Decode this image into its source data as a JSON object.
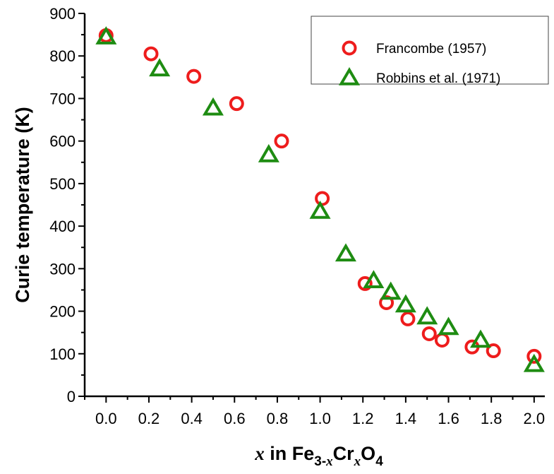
{
  "chart_data": {
    "type": "scatter",
    "xlabel": {
      "var": "x",
      "text_in": " in Fe",
      "sub1": "3-",
      "sub1_var": "x",
      "mid": "Cr",
      "sub2_var": "x",
      "mid2": "O",
      "sub3": "4"
    },
    "ylabel": "Curie temperature (K)",
    "xlim": [
      -0.1,
      2.05
    ],
    "ylim": [
      0,
      900
    ],
    "x_ticks": [
      "0.0",
      "0.2",
      "0.4",
      "0.6",
      "0.8",
      "1.0",
      "1.2",
      "1.4",
      "1.6",
      "1.8",
      "2.0"
    ],
    "y_ticks": [
      "0",
      "100",
      "200",
      "300",
      "400",
      "500",
      "600",
      "700",
      "800",
      "900"
    ],
    "grid": false,
    "legend_position": "top-right",
    "series": [
      {
        "name": "Francombe (1957)",
        "marker": "circle-open",
        "color": "#ee1c1c",
        "points": [
          {
            "x": 0.0,
            "y": 848
          },
          {
            "x": 0.21,
            "y": 805
          },
          {
            "x": 0.41,
            "y": 752
          },
          {
            "x": 0.61,
            "y": 688
          },
          {
            "x": 0.82,
            "y": 600
          },
          {
            "x": 1.01,
            "y": 465
          },
          {
            "x": 1.21,
            "y": 265
          },
          {
            "x": 1.31,
            "y": 220
          },
          {
            "x": 1.41,
            "y": 182
          },
          {
            "x": 1.51,
            "y": 147
          },
          {
            "x": 1.57,
            "y": 132
          },
          {
            "x": 1.71,
            "y": 116
          },
          {
            "x": 1.81,
            "y": 107
          },
          {
            "x": 2.0,
            "y": 94
          }
        ]
      },
      {
        "name": "Robbins et al. (1971)",
        "marker": "triangle-open",
        "color": "#1e8c12",
        "points": [
          {
            "x": 0.0,
            "y": 845
          },
          {
            "x": 0.25,
            "y": 770
          },
          {
            "x": 0.5,
            "y": 678
          },
          {
            "x": 0.76,
            "y": 568
          },
          {
            "x": 1.0,
            "y": 435
          },
          {
            "x": 1.12,
            "y": 335
          },
          {
            "x": 1.25,
            "y": 272
          },
          {
            "x": 1.33,
            "y": 245
          },
          {
            "x": 1.4,
            "y": 215
          },
          {
            "x": 1.5,
            "y": 187
          },
          {
            "x": 1.6,
            "y": 162
          },
          {
            "x": 1.75,
            "y": 132
          },
          {
            "x": 2.0,
            "y": 75
          }
        ]
      }
    ]
  }
}
